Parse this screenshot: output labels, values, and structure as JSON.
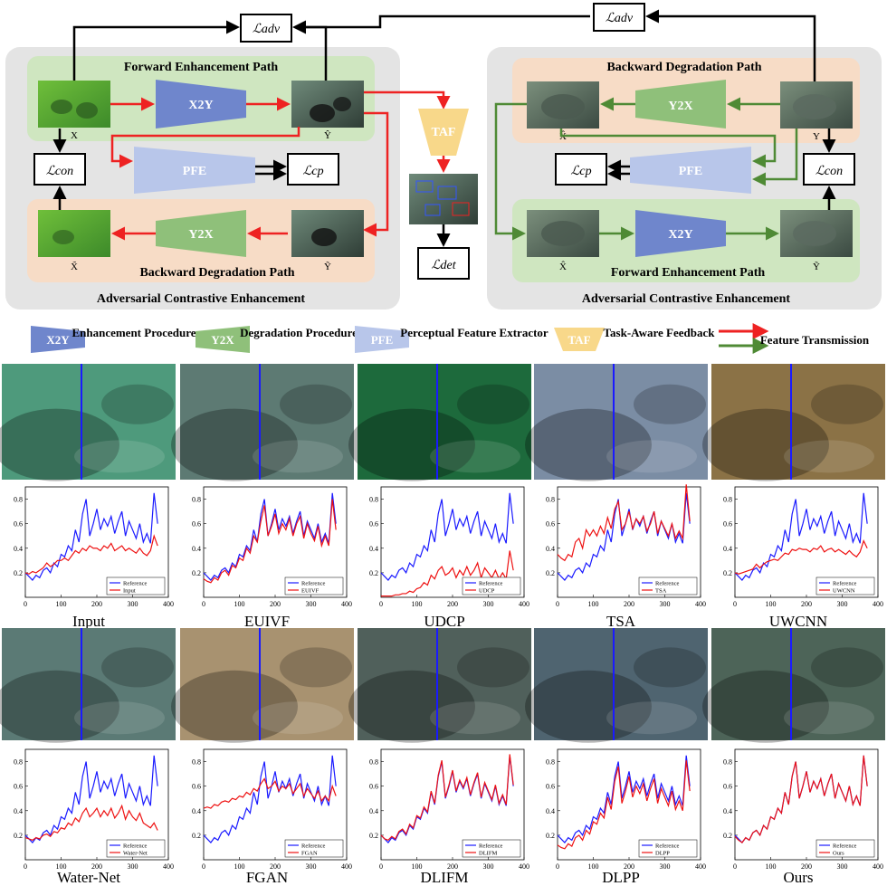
{
  "diagram": {
    "left_panel": {
      "title": "Adversarial Contrastive Enhancement",
      "top_band": "Forward Enhancement Path",
      "bottom_band": "Backward Degradation Path",
      "labels": {
        "x": "X",
        "y_hat": "Ŷ",
        "x_tilde": "X̃",
        "y_tilde": "Ỹ"
      }
    },
    "right_panel": {
      "title": "Adversarial Contrastive Enhancement",
      "top_band": "Backward Degradation Path",
      "bottom_band": "Forward Enhancement Path",
      "labels": {
        "x_hat": "X̂",
        "y": "Y",
        "x_hat2": "X̂",
        "y_tilde": "Ỹ"
      }
    },
    "modules": {
      "x2y": "X2Y",
      "y2x": "Y2X",
      "pfe": "PFE",
      "taf": "TAF"
    },
    "losses": {
      "adv": "ℒadv",
      "con": "ℒcon",
      "cp": "ℒcp",
      "det": "ℒdet"
    },
    "legend": [
      {
        "key": "X2Y",
        "desc": "Enhancement Procedure",
        "color": "#6f86cc"
      },
      {
        "key": "Y2X",
        "desc": "Degradation Procedure",
        "color": "#8fc07a"
      },
      {
        "key": "PFE",
        "desc": "Perceptual Feature Extractor",
        "color": "#b8c6ea"
      },
      {
        "key": "TAF",
        "desc": "Task-Aware Feedback",
        "color": "#f8d88a"
      }
    ],
    "legend_arrows": {
      "label": "Feature Transmission",
      "colors": [
        "#ee2222",
        "#4f8a35"
      ]
    }
  },
  "methods": [
    "Input",
    "EUIVF",
    "UDCP",
    "TSA",
    "UWCNN",
    "Water-Net",
    "FGAN",
    "DLIFM",
    "DLPP",
    "Ours"
  ],
  "reference_label": "Reference",
  "tints": [
    "#4e9a7c",
    "#5d7a73",
    "#1d6a3c",
    "#7b8da4",
    "#8b7246",
    "#5b7a75",
    "#a89270",
    "#50605b",
    "#4f6470",
    "#4d6458"
  ],
  "colors": {
    "reference": "#1a1aff",
    "method": "#ee1111",
    "red_arrow": "#ee2222",
    "green_arrow": "#4f8a35"
  },
  "chart_data": {
    "type": "line",
    "xlim": [
      0,
      400
    ],
    "ylim": [
      0,
      0.9
    ],
    "xticks": [
      0,
      100,
      200,
      300,
      400
    ],
    "yticks": [
      0.2,
      0.4,
      0.6,
      0.8
    ],
    "x": [
      0,
      10,
      20,
      30,
      40,
      50,
      60,
      70,
      80,
      90,
      100,
      110,
      120,
      130,
      140,
      150,
      160,
      170,
      180,
      190,
      200,
      210,
      220,
      230,
      240,
      250,
      260,
      270,
      280,
      290,
      300,
      310,
      320,
      330,
      340,
      350,
      360,
      370
    ],
    "reference": [
      0.2,
      0.17,
      0.14,
      0.18,
      0.16,
      0.22,
      0.24,
      0.2,
      0.28,
      0.25,
      0.35,
      0.33,
      0.42,
      0.38,
      0.55,
      0.45,
      0.68,
      0.8,
      0.5,
      0.6,
      0.72,
      0.55,
      0.64,
      0.58,
      0.66,
      0.52,
      0.62,
      0.7,
      0.5,
      0.62,
      0.55,
      0.48,
      0.6,
      0.45,
      0.52,
      0.44,
      0.85,
      0.6
    ],
    "series": [
      {
        "name": "Input",
        "values": [
          0.2,
          0.19,
          0.21,
          0.2,
          0.22,
          0.24,
          0.28,
          0.25,
          0.27,
          0.3,
          0.3,
          0.32,
          0.3,
          0.34,
          0.38,
          0.36,
          0.4,
          0.38,
          0.42,
          0.4,
          0.4,
          0.38,
          0.42,
          0.4,
          0.44,
          0.38,
          0.4,
          0.42,
          0.38,
          0.4,
          0.38,
          0.36,
          0.4,
          0.36,
          0.34,
          0.38,
          0.5,
          0.42
        ]
      },
      {
        "name": "EUIVF",
        "values": [
          0.15,
          0.13,
          0.12,
          0.16,
          0.14,
          0.2,
          0.22,
          0.18,
          0.26,
          0.24,
          0.32,
          0.3,
          0.4,
          0.36,
          0.5,
          0.45,
          0.62,
          0.75,
          0.5,
          0.58,
          0.68,
          0.52,
          0.6,
          0.55,
          0.64,
          0.5,
          0.6,
          0.66,
          0.48,
          0.6,
          0.52,
          0.46,
          0.58,
          0.42,
          0.5,
          0.42,
          0.8,
          0.55
        ]
      },
      {
        "name": "UDCP",
        "values": [
          0.01,
          0.01,
          0.01,
          0.01,
          0.02,
          0.02,
          0.03,
          0.03,
          0.05,
          0.04,
          0.07,
          0.08,
          0.12,
          0.1,
          0.18,
          0.15,
          0.22,
          0.25,
          0.18,
          0.2,
          0.24,
          0.16,
          0.22,
          0.18,
          0.25,
          0.18,
          0.22,
          0.28,
          0.16,
          0.24,
          0.2,
          0.16,
          0.22,
          0.15,
          0.2,
          0.15,
          0.38,
          0.22
        ]
      },
      {
        "name": "TSA",
        "values": [
          0.35,
          0.32,
          0.3,
          0.35,
          0.33,
          0.45,
          0.48,
          0.4,
          0.55,
          0.5,
          0.55,
          0.5,
          0.58,
          0.52,
          0.65,
          0.56,
          0.72,
          0.78,
          0.55,
          0.6,
          0.7,
          0.56,
          0.64,
          0.6,
          0.66,
          0.54,
          0.6,
          0.7,
          0.52,
          0.62,
          0.56,
          0.5,
          0.6,
          0.48,
          0.54,
          0.48,
          0.92,
          0.62
        ]
      },
      {
        "name": "UWCNN",
        "values": [
          0.2,
          0.19,
          0.2,
          0.21,
          0.22,
          0.23,
          0.27,
          0.24,
          0.27,
          0.29,
          0.3,
          0.31,
          0.3,
          0.33,
          0.36,
          0.35,
          0.39,
          0.38,
          0.4,
          0.39,
          0.39,
          0.37,
          0.4,
          0.39,
          0.42,
          0.37,
          0.39,
          0.4,
          0.37,
          0.39,
          0.37,
          0.35,
          0.38,
          0.35,
          0.33,
          0.37,
          0.46,
          0.4
        ]
      },
      {
        "name": "Water-Net",
        "values": [
          0.18,
          0.17,
          0.16,
          0.18,
          0.17,
          0.2,
          0.21,
          0.19,
          0.23,
          0.22,
          0.26,
          0.25,
          0.3,
          0.28,
          0.34,
          0.31,
          0.38,
          0.42,
          0.35,
          0.38,
          0.42,
          0.35,
          0.4,
          0.36,
          0.42,
          0.34,
          0.38,
          0.44,
          0.33,
          0.4,
          0.35,
          0.32,
          0.38,
          0.3,
          0.28,
          0.26,
          0.3,
          0.24
        ]
      },
      {
        "name": "FGAN",
        "values": [
          0.42,
          0.43,
          0.42,
          0.45,
          0.44,
          0.47,
          0.48,
          0.47,
          0.5,
          0.49,
          0.52,
          0.51,
          0.55,
          0.53,
          0.58,
          0.56,
          0.62,
          0.66,
          0.58,
          0.6,
          0.64,
          0.56,
          0.6,
          0.58,
          0.62,
          0.54,
          0.58,
          0.62,
          0.52,
          0.58,
          0.54,
          0.5,
          0.56,
          0.48,
          0.52,
          0.48,
          0.6,
          0.52
        ]
      },
      {
        "name": "DLIFM",
        "values": [
          0.2,
          0.17,
          0.16,
          0.19,
          0.17,
          0.23,
          0.25,
          0.21,
          0.29,
          0.26,
          0.36,
          0.34,
          0.43,
          0.39,
          0.56,
          0.46,
          0.69,
          0.81,
          0.51,
          0.61,
          0.73,
          0.56,
          0.65,
          0.59,
          0.67,
          0.53,
          0.63,
          0.71,
          0.51,
          0.63,
          0.56,
          0.49,
          0.61,
          0.46,
          0.53,
          0.45,
          0.86,
          0.61
        ]
      },
      {
        "name": "DLPP",
        "values": [
          0.12,
          0.1,
          0.09,
          0.13,
          0.11,
          0.18,
          0.2,
          0.16,
          0.24,
          0.21,
          0.31,
          0.29,
          0.38,
          0.34,
          0.51,
          0.41,
          0.64,
          0.76,
          0.46,
          0.56,
          0.68,
          0.51,
          0.6,
          0.54,
          0.62,
          0.48,
          0.58,
          0.66,
          0.46,
          0.58,
          0.51,
          0.44,
          0.56,
          0.41,
          0.48,
          0.4,
          0.81,
          0.56
        ]
      },
      {
        "name": "Ours",
        "values": [
          0.19,
          0.16,
          0.14,
          0.18,
          0.16,
          0.22,
          0.24,
          0.2,
          0.28,
          0.25,
          0.35,
          0.33,
          0.42,
          0.38,
          0.55,
          0.45,
          0.68,
          0.8,
          0.5,
          0.6,
          0.72,
          0.55,
          0.64,
          0.58,
          0.66,
          0.52,
          0.62,
          0.7,
          0.5,
          0.62,
          0.55,
          0.48,
          0.6,
          0.45,
          0.52,
          0.44,
          0.85,
          0.6
        ]
      }
    ]
  }
}
